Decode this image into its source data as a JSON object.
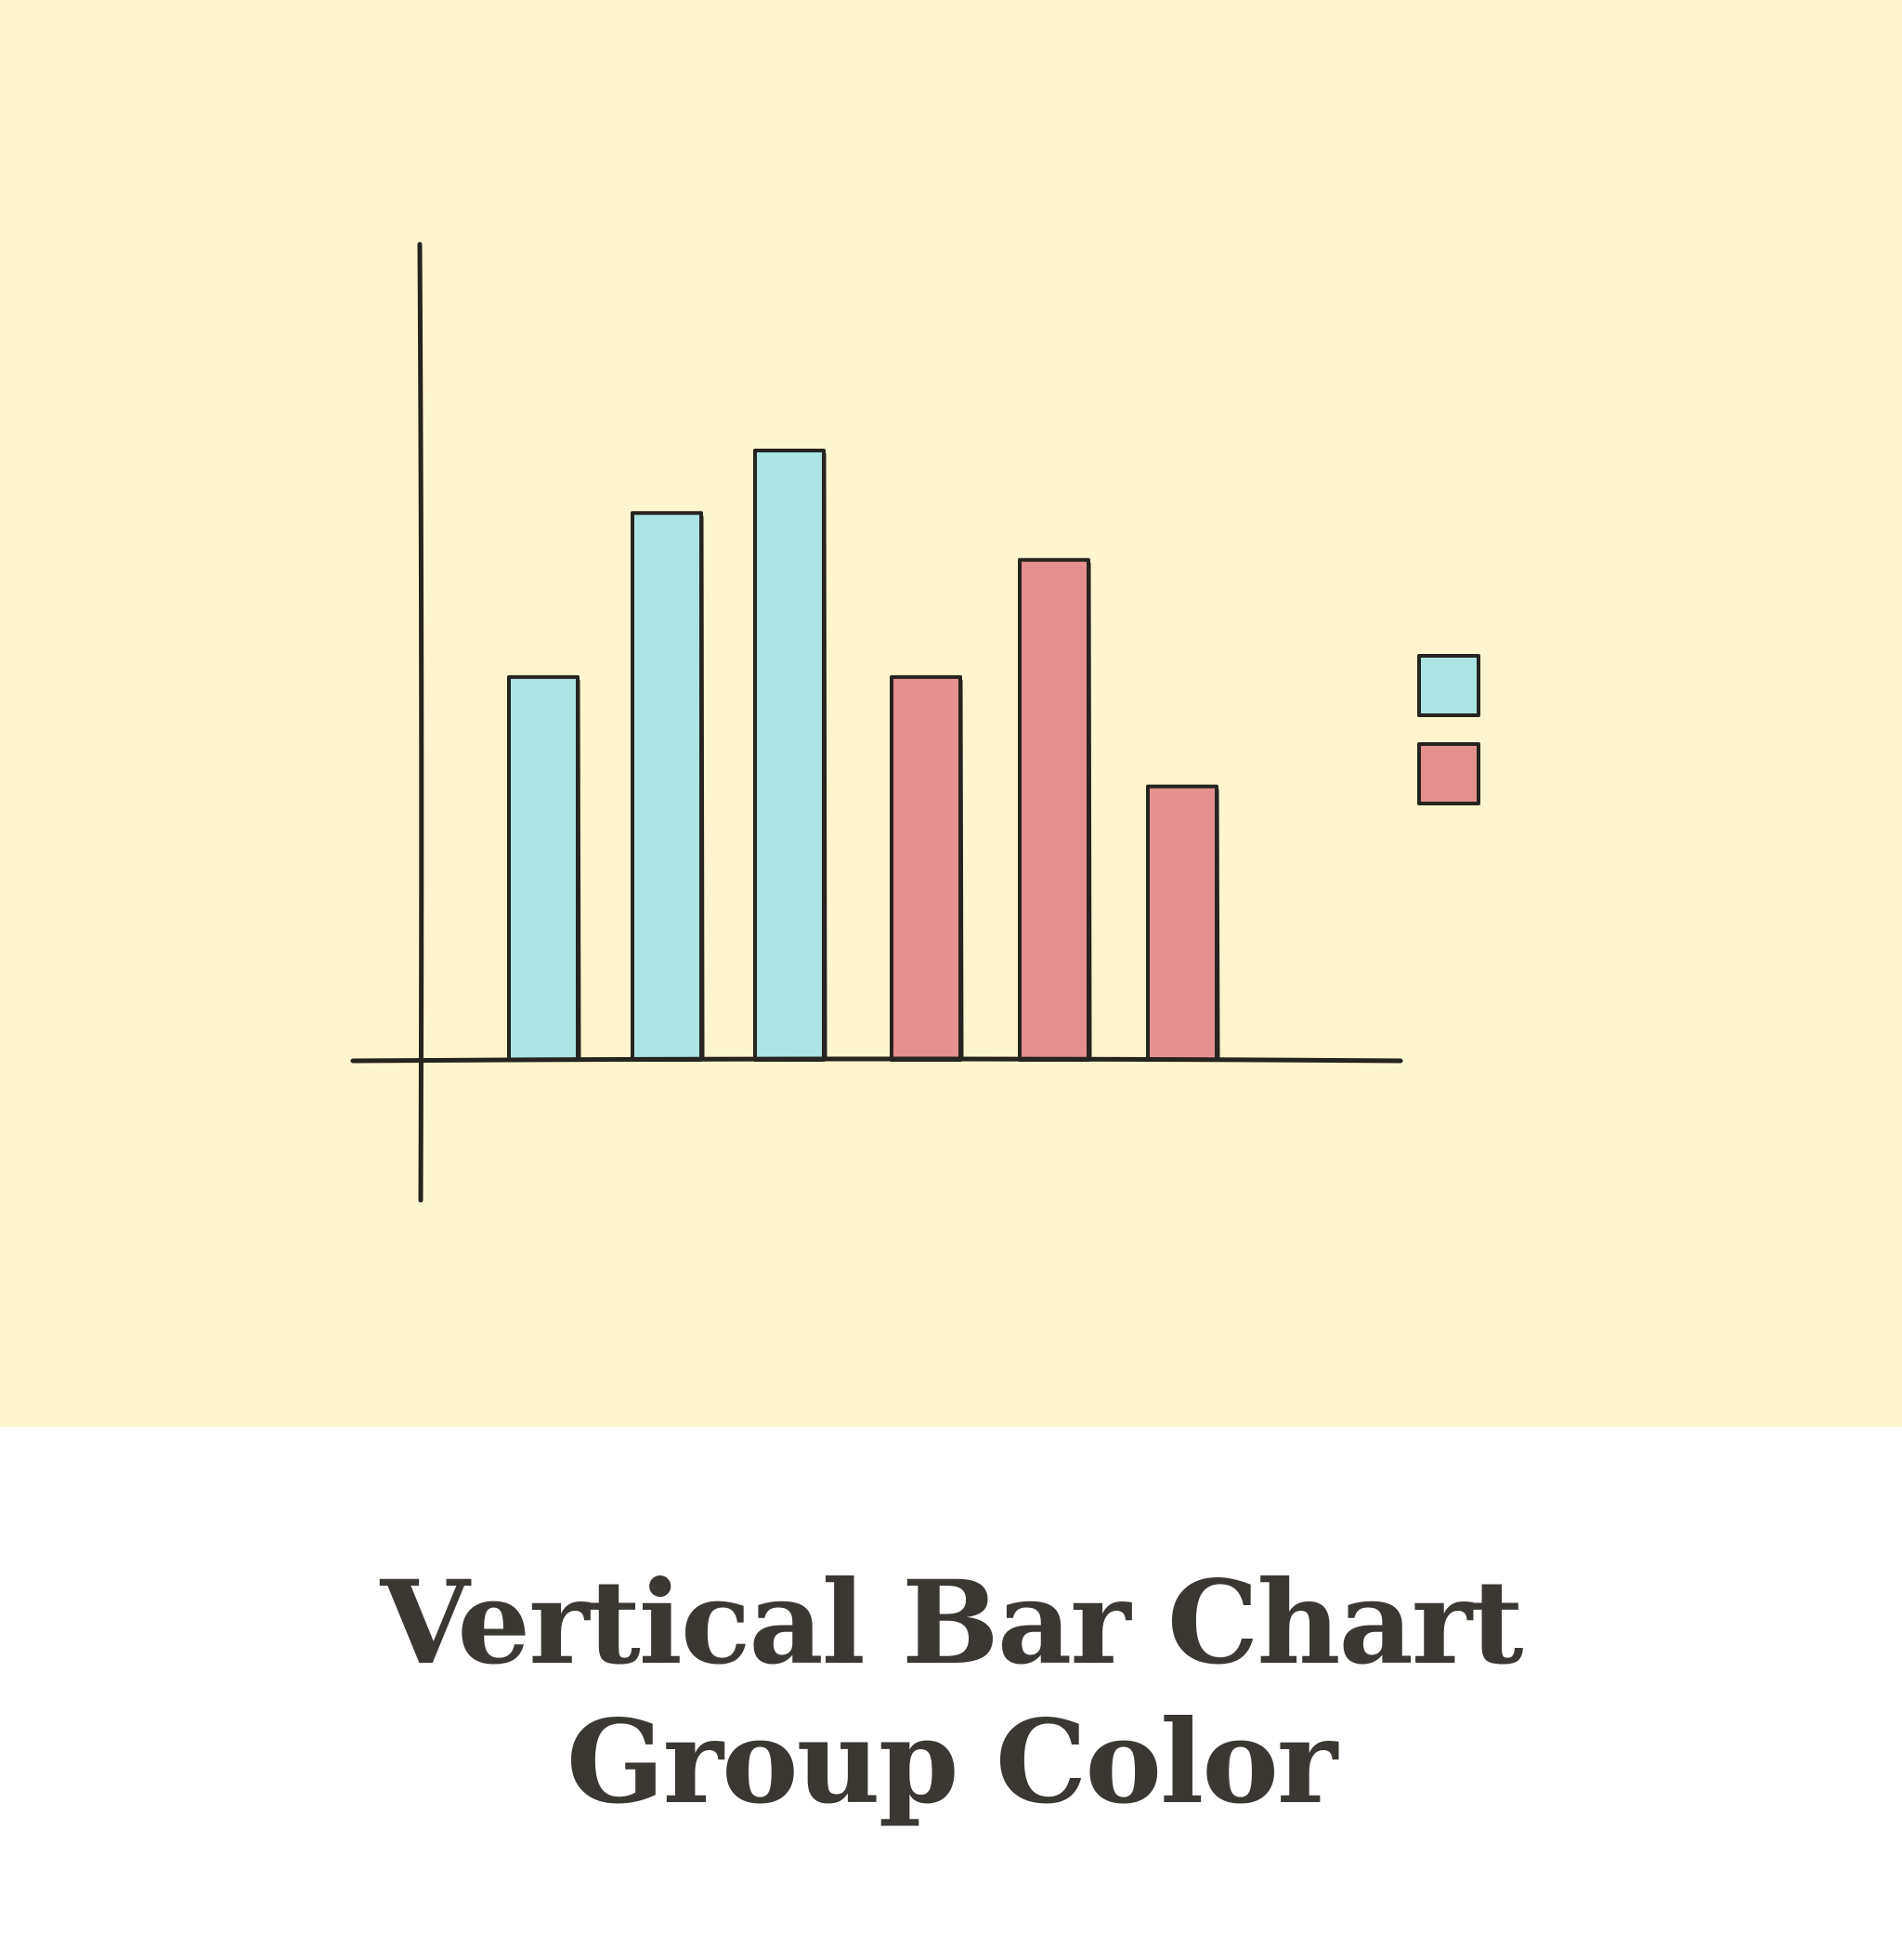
{
  "caption": {
    "line1": "Vertical Bar Chart",
    "line2": "Group Color"
  },
  "colors": {
    "panel_background": "#fdf5cd",
    "page_background": "#ffffff",
    "ink": "#262420",
    "caption_text": "#3b3833",
    "group_1": "#ace3e3",
    "group_2": "#e59090"
  },
  "chart_data": {
    "type": "bar",
    "title": "",
    "xlabel": "",
    "ylabel": "",
    "ylim": [
      0,
      100
    ],
    "grid": false,
    "legend": "right",
    "bars": [
      {
        "group": 0,
        "value": 49
      },
      {
        "group": 0,
        "value": 70
      },
      {
        "group": 0,
        "value": 78
      },
      {
        "group": 1,
        "value": 49
      },
      {
        "group": 1,
        "value": 64
      },
      {
        "group": 1,
        "value": 35
      }
    ],
    "groups": [
      {
        "color": "#ace3e3"
      },
      {
        "color": "#e59090"
      }
    ]
  }
}
